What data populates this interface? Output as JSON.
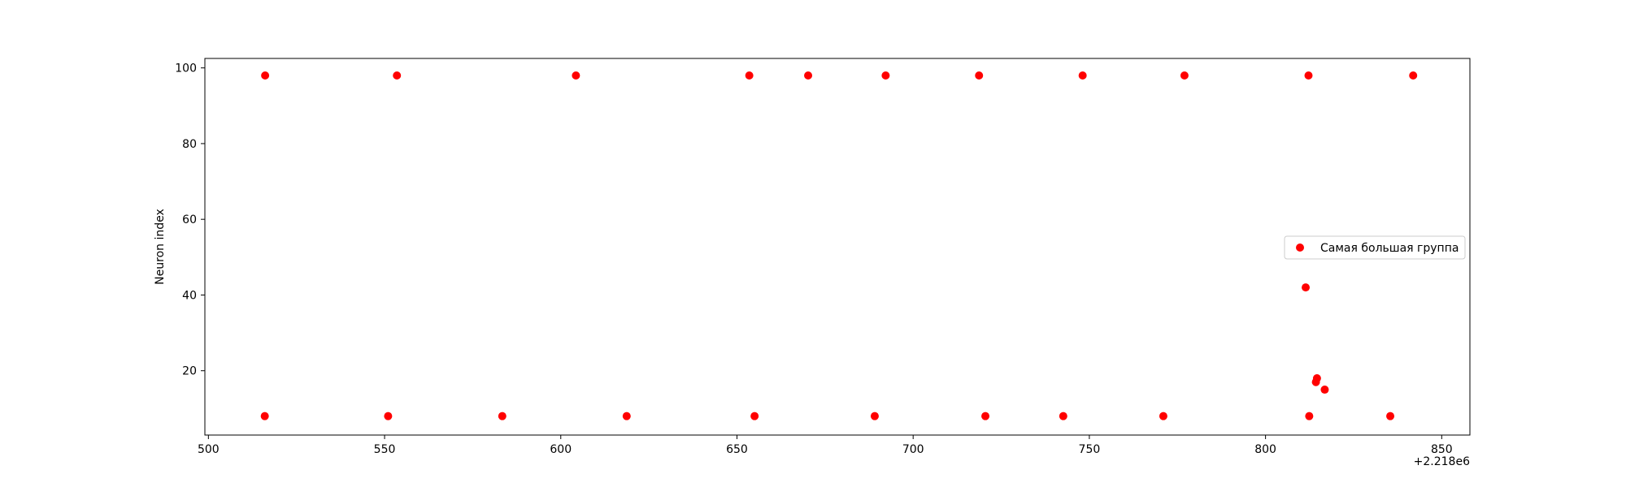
{
  "chart_data": {
    "type": "scatter",
    "title": "",
    "xlabel": "",
    "ylabel": "Neuron index",
    "x_offset_label": "+2.218e6",
    "xlim": [
      499,
      858
    ],
    "ylim": [
      3,
      102.5
    ],
    "x_ticks": [
      500,
      550,
      600,
      650,
      700,
      750,
      800,
      850
    ],
    "y_ticks": [
      20,
      40,
      60,
      80,
      100
    ],
    "x_tick_labels": [
      "500",
      "550",
      "600",
      "650",
      "700",
      "750",
      "800",
      "850"
    ],
    "y_tick_labels": [
      "20",
      "40",
      "60",
      "80",
      "100"
    ],
    "grid": false,
    "legend_position": "center-right",
    "series": [
      {
        "name": "Самая большая группа",
        "color": "#ff0000",
        "marker": "circle",
        "x": [
          516.1,
          553.5,
          604.3,
          653.5,
          670.2,
          692.2,
          718.7,
          748.1,
          777.0,
          812.2,
          841.9,
          516.0,
          551.0,
          583.4,
          618.7,
          655.0,
          689.1,
          720.5,
          742.6,
          771.0,
          812.4,
          835.4,
          811.4,
          814.3,
          814.6,
          816.8
        ],
        "y": [
          98,
          98,
          98,
          98,
          98,
          98,
          98,
          98,
          98,
          98,
          98,
          8,
          8,
          8,
          8,
          8,
          8,
          8,
          8,
          8,
          8,
          8,
          42,
          17,
          18,
          15
        ]
      }
    ]
  }
}
